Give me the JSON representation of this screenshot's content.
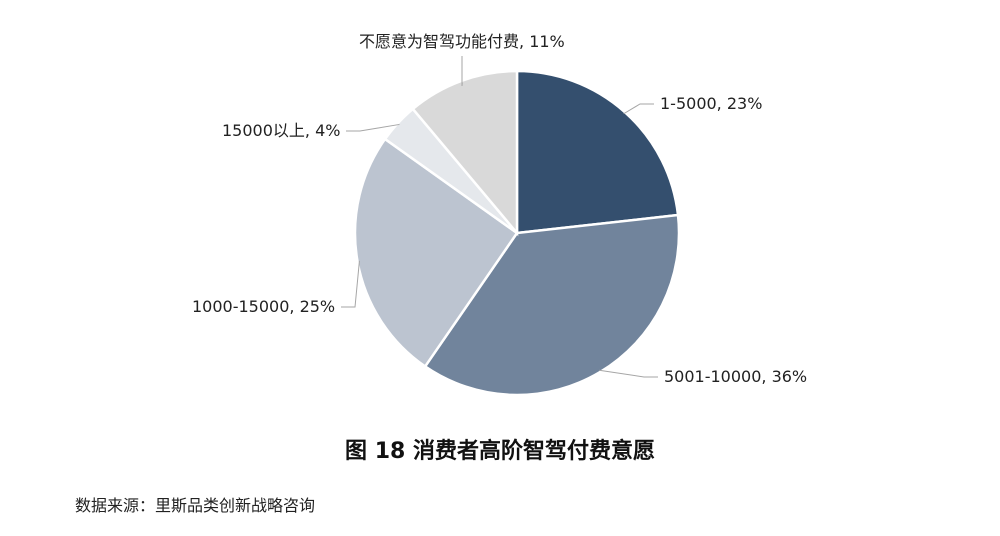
{
  "chart_data": {
    "type": "pie",
    "title": "图 18  消费者高阶智驾付费意愿",
    "source": "数据来源：里斯品类创新战略咨询",
    "categories": [
      "1-5000",
      "5001-10000",
      "1000-15000",
      "15000以上",
      "不愿意为智驾功能付费"
    ],
    "values": [
      23,
      36,
      25,
      4,
      11
    ],
    "value_labels": [
      "23%",
      "36%",
      "25%",
      "4%",
      "11%"
    ],
    "colors": [
      "#344f6e",
      "#71849c",
      "#bcc4d0",
      "#e5e8ec",
      "#d9d9d9"
    ]
  }
}
